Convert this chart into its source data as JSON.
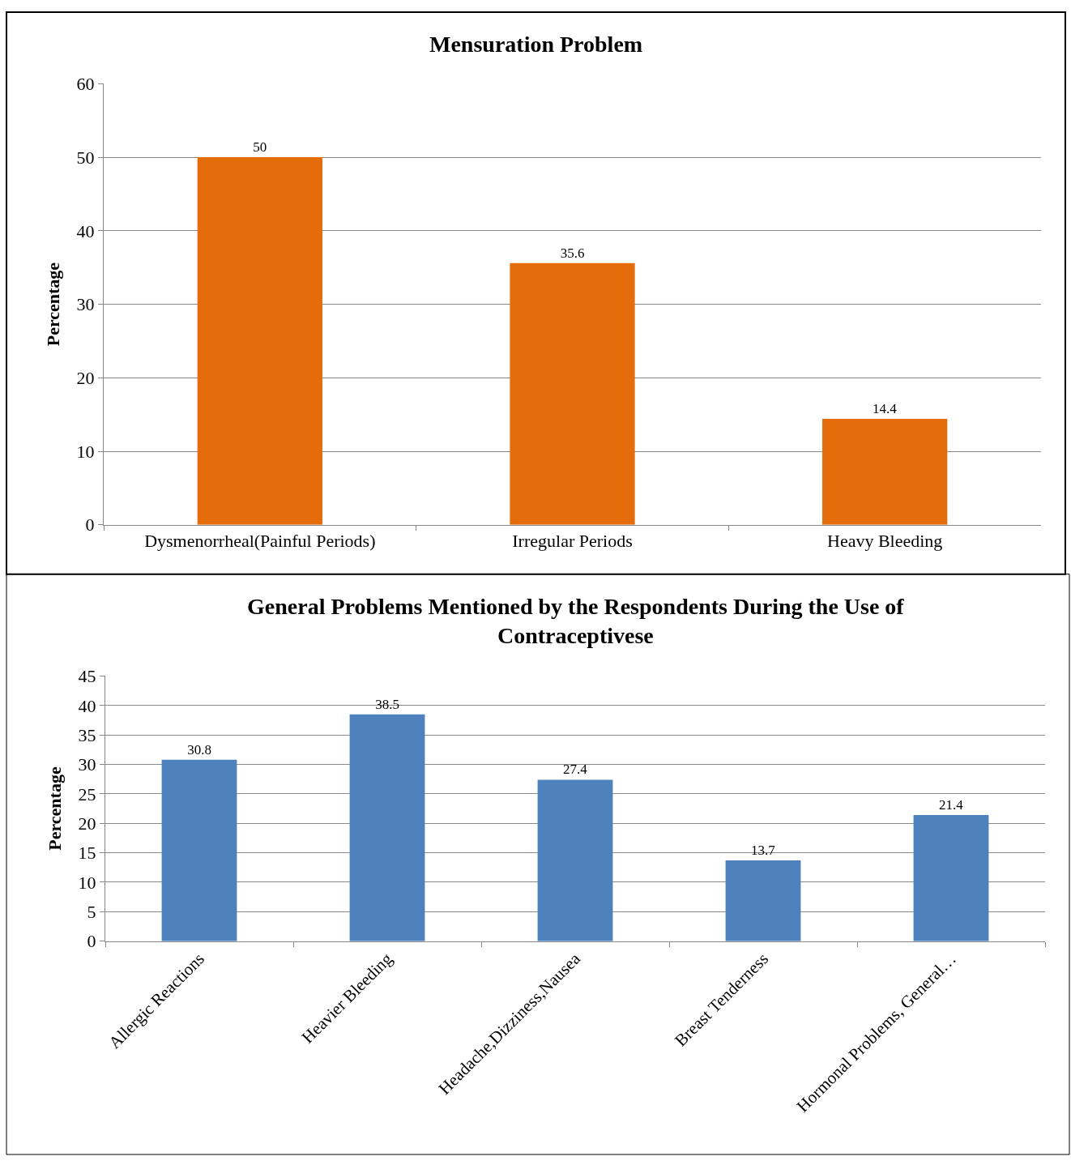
{
  "chart_data": [
    {
      "type": "bar",
      "title": "Mensuration Problem",
      "ylabel": "Percentage",
      "categories": [
        "Dysmenorrheal(Painful Periods)",
        "Irregular Periods",
        "Heavy Bleeding"
      ],
      "values": [
        50,
        35.6,
        14.4
      ],
      "color": "#e46c0a",
      "ylim": [
        0,
        60
      ],
      "yticks": [
        0,
        10,
        20,
        30,
        40,
        50,
        60
      ],
      "grid": "y",
      "data_labels": true
    },
    {
      "type": "bar",
      "title": "General Problems Mentioned by the Respondents During the Use of Contraceptivese",
      "ylabel": "Percentage",
      "categories": [
        "Allergic Reactions",
        "Heavier Bleeding",
        "Headache,Dizziness,Nausea",
        "Breast Tenderness",
        "Hormonal Problems, General…"
      ],
      "values": [
        30.8,
        38.5,
        27.4,
        13.7,
        21.4
      ],
      "color": "#4f81bd",
      "ylim": [
        0,
        45
      ],
      "yticks": [
        0,
        5,
        10,
        15,
        20,
        25,
        30,
        35,
        40,
        45
      ],
      "grid": "y",
      "data_labels": true
    }
  ]
}
